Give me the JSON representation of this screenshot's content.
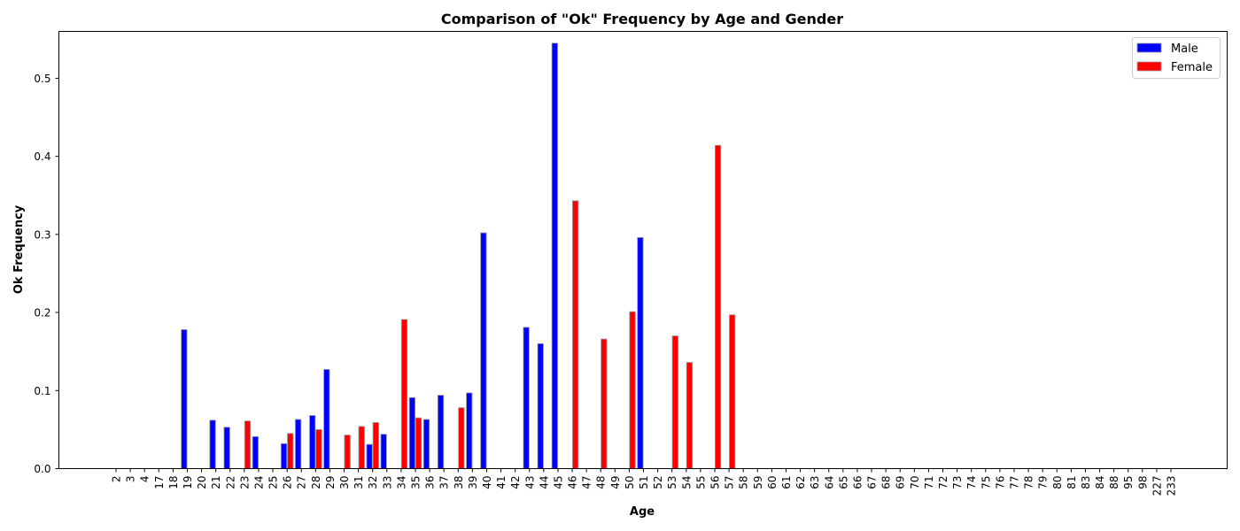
{
  "chart_data": {
    "type": "bar",
    "title": "Comparison of \"Ok\" Frequency by Age and Gender",
    "xlabel": "Age",
    "ylabel": "Ok Frequency",
    "ylim": [
      0,
      0.56
    ],
    "yticks": [
      0.0,
      0.1,
      0.2,
      0.3,
      0.4,
      0.5
    ],
    "grid": false,
    "legend_position": "top-right",
    "categories": [
      "2",
      "3",
      "4",
      "17",
      "18",
      "19",
      "20",
      "21",
      "22",
      "23",
      "24",
      "25",
      "26",
      "27",
      "28",
      "29",
      "30",
      "31",
      "32",
      "33",
      "34",
      "35",
      "36",
      "37",
      "38",
      "39",
      "40",
      "41",
      "42",
      "43",
      "44",
      "45",
      "46",
      "47",
      "48",
      "49",
      "50",
      "51",
      "52",
      "53",
      "54",
      "55",
      "56",
      "57",
      "58",
      "59",
      "60",
      "61",
      "62",
      "63",
      "64",
      "65",
      "66",
      "67",
      "68",
      "69",
      "70",
      "71",
      "72",
      "73",
      "74",
      "75",
      "76",
      "77",
      "78",
      "79",
      "80",
      "81",
      "83",
      "84",
      "88",
      "95",
      "98",
      "227",
      "233"
    ],
    "series": [
      {
        "name": "Male",
        "color": "#0000ff",
        "values": [
          0,
          0,
          0,
          0,
          0,
          0.178,
          0,
          0.062,
          0.053,
          0,
          0.041,
          0,
          0.032,
          0.063,
          0.068,
          0.127,
          0,
          0,
          0.031,
          0.044,
          0,
          0.091,
          0.063,
          0.094,
          0,
          0.097,
          0.302,
          0,
          0,
          0.181,
          0.16,
          0.545,
          0,
          0,
          0,
          0,
          0,
          0.296,
          0,
          0,
          0,
          0,
          0,
          0,
          0,
          0,
          0,
          0,
          0,
          0,
          0,
          0,
          0,
          0,
          0,
          0,
          0,
          0,
          0,
          0,
          0,
          0,
          0,
          0,
          0,
          0,
          0,
          0,
          0,
          0,
          0,
          0,
          0,
          0,
          0
        ]
      },
      {
        "name": "Female",
        "color": "#ff0000",
        "values": [
          0,
          0,
          0,
          0,
          0,
          0,
          0,
          0,
          0,
          0.061,
          0,
          0,
          0.045,
          0,
          0.05,
          0,
          0.043,
          0.054,
          0.059,
          0,
          0.191,
          0.065,
          0,
          0,
          0.078,
          0,
          0,
          0,
          0,
          0,
          0,
          0,
          0.343,
          0,
          0.166,
          0,
          0.201,
          0,
          0,
          0.17,
          0.136,
          0,
          0.414,
          0.197,
          0,
          0,
          0,
          0,
          0,
          0,
          0,
          0,
          0,
          0,
          0,
          0,
          0,
          0,
          0,
          0,
          0,
          0,
          0,
          0,
          0,
          0,
          0,
          0,
          0,
          0,
          0,
          0,
          0,
          0,
          0
        ]
      }
    ]
  }
}
